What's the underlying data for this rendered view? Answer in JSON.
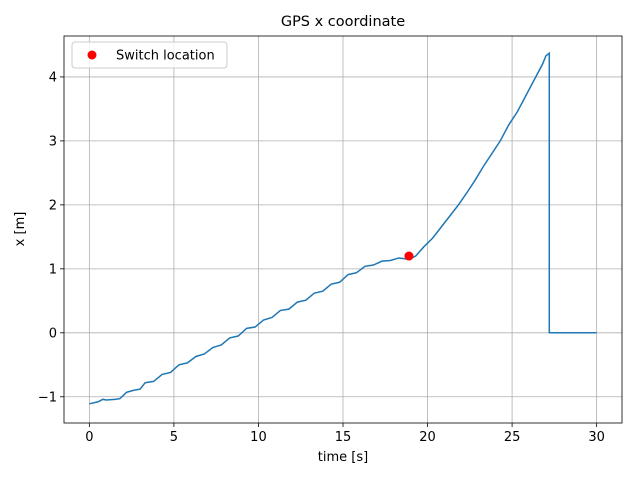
{
  "chart_data": {
    "type": "line",
    "title": "GPS x coordinate",
    "x_label": "time [s]",
    "y_label": "x [m]",
    "xlim": [
      -1.5,
      31.5
    ],
    "ylim": [
      -1.41,
      4.64
    ],
    "xticks": [
      0,
      5,
      10,
      15,
      20,
      25,
      30
    ],
    "yticks": [
      {
        "value": -1,
        "label": "−1"
      },
      0,
      1,
      2,
      3,
      4
    ],
    "grid": true,
    "legend": "upper-left",
    "series": [
      {
        "type": "line",
        "color": "#1f77b4",
        "x": [
          0,
          0.5,
          0.8,
          1.0,
          1.5,
          1.8,
          2.2,
          2.6,
          3.0,
          3.3,
          3.8,
          4.3,
          4.8,
          5.3,
          5.8,
          6.3,
          6.8,
          7.3,
          7.8,
          8.3,
          8.8,
          9.3,
          9.8,
          10.3,
          10.8,
          11.3,
          11.8,
          12.3,
          12.8,
          13.3,
          13.8,
          14.3,
          14.8,
          15.3,
          15.8,
          16.3,
          16.8,
          17.3,
          17.8,
          18.3,
          18.9,
          19.3,
          19.8,
          20.3,
          20.8,
          21.3,
          21.8,
          22.3,
          22.8,
          23.3,
          23.8,
          24.3,
          24.8,
          25.3,
          25.8,
          26.3,
          26.8,
          27.0,
          27.2,
          27.2,
          30
        ],
        "values": [
          -1.11,
          -1.08,
          -1.04,
          -1.05,
          -1.04,
          -1.03,
          -0.93,
          -0.9,
          -0.88,
          -0.78,
          -0.76,
          -0.65,
          -0.62,
          -0.5,
          -0.47,
          -0.37,
          -0.33,
          -0.23,
          -0.19,
          -0.08,
          -0.05,
          0.07,
          0.09,
          0.2,
          0.24,
          0.35,
          0.37,
          0.48,
          0.51,
          0.62,
          0.65,
          0.76,
          0.79,
          0.91,
          0.94,
          1.04,
          1.06,
          1.12,
          1.13,
          1.17,
          1.15,
          1.2,
          1.35,
          1.48,
          1.65,
          1.82,
          1.99,
          2.18,
          2.38,
          2.6,
          2.8,
          3.0,
          3.25,
          3.45,
          3.7,
          3.95,
          4.2,
          4.33,
          4.37,
          0,
          0
        ]
      },
      {
        "type": "scatter",
        "name": "Switch location",
        "color": "#ff0000",
        "x": [
          18.9
        ],
        "values": [
          1.2
        ]
      }
    ]
  }
}
